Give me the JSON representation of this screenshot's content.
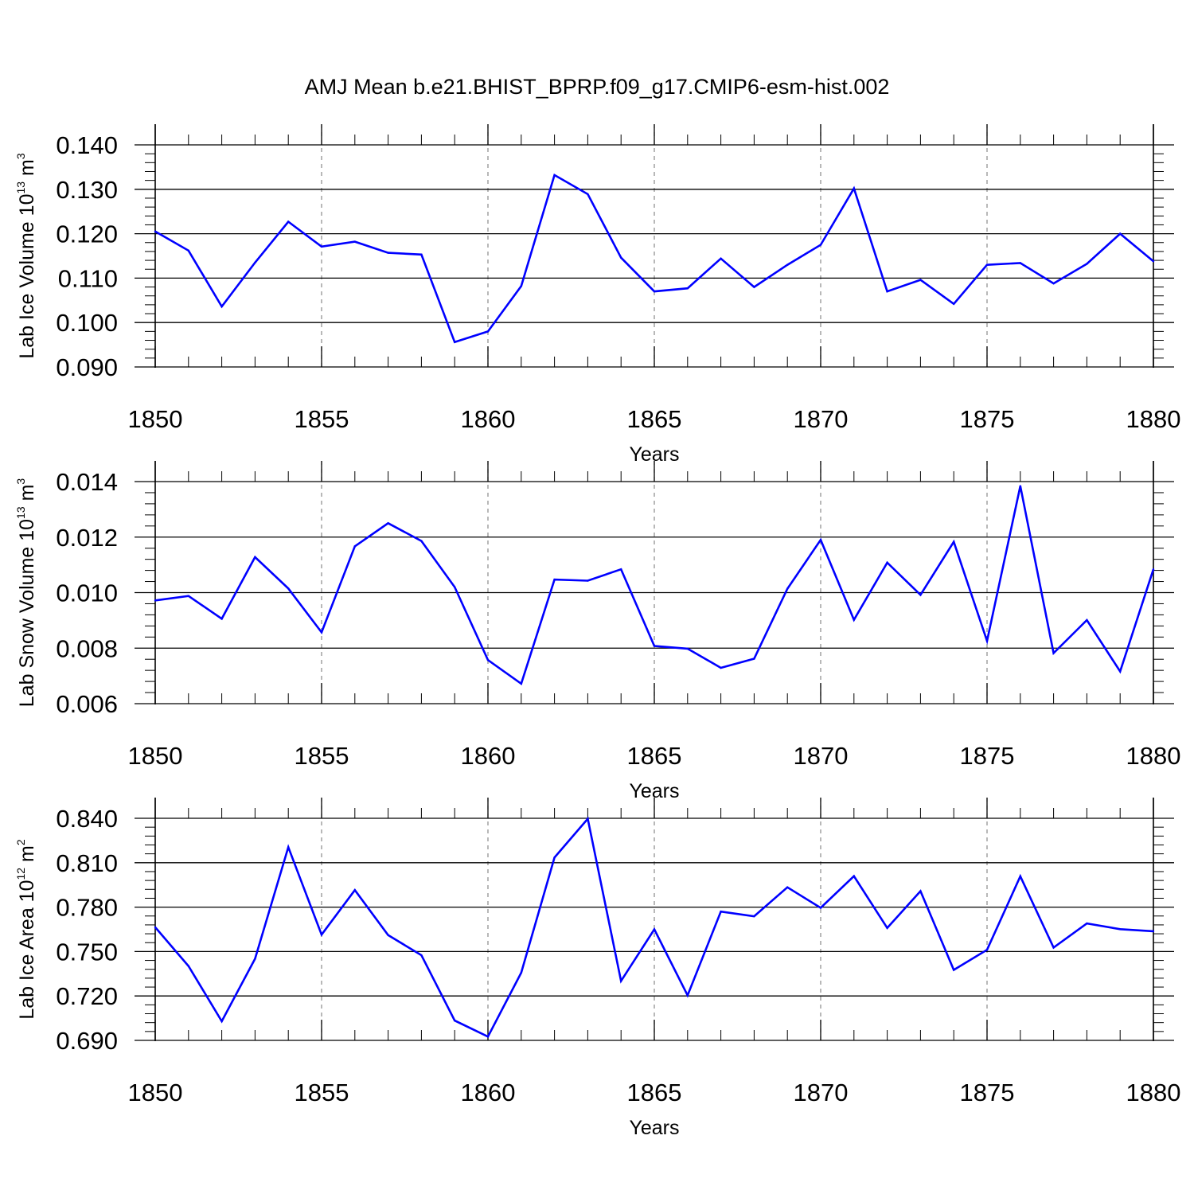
{
  "title": "AMJ Mean b.e21.BHIST_BPRP.f09_g17.CMIP6-esm-hist.002",
  "colors": {
    "line": "#0000ff",
    "axis": "#000000",
    "grid": "#888888"
  },
  "chart_data": [
    {
      "type": "line",
      "xlabel": "Years",
      "ylabel": {
        "text": "Lab Ice Volume 10",
        "sup1": "13",
        "unit": " m",
        "sup2": "3"
      },
      "xlim": [
        1850,
        1880
      ],
      "ylim": [
        0.09,
        0.14
      ],
      "xticks": [
        "1850",
        "1855",
        "1860",
        "1865",
        "1870",
        "1875",
        "1880"
      ],
      "yticks": [
        "0.090",
        "0.100",
        "0.110",
        "0.120",
        "0.130",
        "0.140"
      ],
      "grid": "vertical dashed at major x ticks",
      "x": [
        1850,
        1851,
        1852,
        1853,
        1854,
        1855,
        1856,
        1857,
        1858,
        1859,
        1860,
        1861,
        1862,
        1863,
        1864,
        1865,
        1866,
        1867,
        1868,
        1869,
        1870,
        1871,
        1872,
        1873,
        1874,
        1875,
        1876,
        1877,
        1878,
        1879,
        1880
      ],
      "values": [
        0.1205,
        0.1162,
        0.1036,
        0.1135,
        0.1227,
        0.1171,
        0.1182,
        0.1157,
        0.1153,
        0.0956,
        0.098,
        0.1082,
        0.1332,
        0.1289,
        0.1146,
        0.107,
        0.1077,
        0.1144,
        0.108,
        0.113,
        0.1175,
        0.1302,
        0.107,
        0.1096,
        0.1042,
        0.113,
        0.1134,
        0.1088,
        0.1132,
        0.12,
        0.1138
      ]
    },
    {
      "type": "line",
      "xlabel": "Years",
      "ylabel": {
        "text": "Lab Snow Volume 10",
        "sup1": "13",
        "unit": " m",
        "sup2": "3"
      },
      "xlim": [
        1850,
        1880
      ],
      "ylim": [
        0.006,
        0.014
      ],
      "xticks": [
        "1850",
        "1855",
        "1860",
        "1865",
        "1870",
        "1875",
        "1880"
      ],
      "yticks": [
        "0.006",
        "0.008",
        "0.010",
        "0.012",
        "0.014"
      ],
      "grid": "vertical dashed at major x ticks",
      "x": [
        1850,
        1851,
        1852,
        1853,
        1854,
        1855,
        1856,
        1857,
        1858,
        1859,
        1860,
        1861,
        1862,
        1863,
        1864,
        1865,
        1866,
        1867,
        1868,
        1869,
        1870,
        1871,
        1872,
        1873,
        1874,
        1875,
        1876,
        1877,
        1878,
        1879,
        1880
      ],
      "values": [
        0.00972,
        0.00988,
        0.00906,
        0.01128,
        0.01015,
        0.00857,
        0.01167,
        0.0125,
        0.01186,
        0.0102,
        0.00757,
        0.00672,
        0.01047,
        0.01043,
        0.01084,
        0.00808,
        0.00798,
        0.00729,
        0.00762,
        0.01014,
        0.0119,
        0.00902,
        0.01108,
        0.00992,
        0.01183,
        0.00826,
        0.01384,
        0.00782,
        0.00901,
        0.00716,
        0.01084
      ]
    },
    {
      "type": "line",
      "xlabel": "Years",
      "ylabel": {
        "text": "Lab Ice Area 10",
        "sup1": "12",
        "unit": " m",
        "sup2": "2"
      },
      "xlim": [
        1850,
        1880
      ],
      "ylim": [
        0.69,
        0.84
      ],
      "xticks": [
        "1850",
        "1855",
        "1860",
        "1865",
        "1870",
        "1875",
        "1880"
      ],
      "yticks": [
        "0.690",
        "0.720",
        "0.750",
        "0.780",
        "0.810",
        "0.840"
      ],
      "grid": "vertical dashed at major x ticks",
      "x": [
        1850,
        1851,
        1852,
        1853,
        1854,
        1855,
        1856,
        1857,
        1858,
        1859,
        1860,
        1861,
        1862,
        1863,
        1864,
        1865,
        1866,
        1867,
        1868,
        1869,
        1870,
        1871,
        1872,
        1873,
        1874,
        1875,
        1876,
        1877,
        1878,
        1879,
        1880
      ],
      "values": [
        0.7664,
        0.7402,
        0.7029,
        0.7451,
        0.8205,
        0.7614,
        0.7915,
        0.7611,
        0.7475,
        0.7034,
        0.6925,
        0.7357,
        0.8135,
        0.8397,
        0.7301,
        0.765,
        0.7204,
        0.777,
        0.7738,
        0.7934,
        0.7795,
        0.8009,
        0.7659,
        0.7908,
        0.7376,
        0.7512,
        0.8008,
        0.7527,
        0.769,
        0.7651,
        0.7637
      ]
    }
  ]
}
